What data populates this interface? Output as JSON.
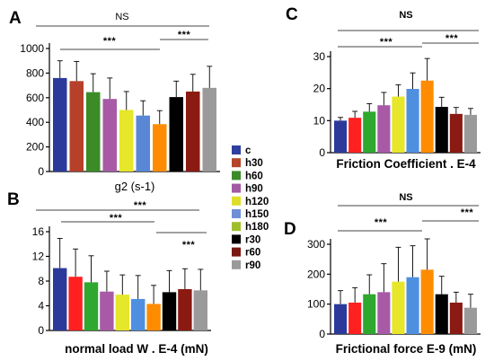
{
  "legend": [
    {
      "label": "c",
      "color": "#2e3fa0"
    },
    {
      "label": "h30",
      "color": "#b5452b"
    },
    {
      "label": "h60",
      "color": "#3a8c2a"
    },
    {
      "label": "h90",
      "color": "#a25aa4"
    },
    {
      "label": "h120",
      "color": "#dede2a"
    },
    {
      "label": "h150",
      "color": "#6f8fd6"
    },
    {
      "label": "h180",
      "color": "#9fbf2a"
    },
    {
      "label": "r30",
      "color": "#000000"
    },
    {
      "label": "r60",
      "color": "#7a1a12"
    },
    {
      "label": "r90",
      "color": "#9a9a9a"
    }
  ],
  "chart_data": [
    {
      "type": "bar",
      "panel": "A",
      "xlabel": "g2 (s-1)",
      "ylabel": "",
      "ylim": [
        0,
        1000
      ],
      "yticks": [
        0,
        200,
        400,
        600,
        800,
        1000
      ],
      "series_colors": [
        "#2b3a9a",
        "#b6402a",
        "#3b8c27",
        "#a85aa6",
        "#e6e62a",
        "#5a86d6",
        "#ff8c00",
        "#000000",
        "#8b1a12",
        "#9a9a9a"
      ],
      "values": [
        760,
        735,
        645,
        590,
        500,
        455,
        385,
        605,
        650,
        680
      ],
      "errors": [
        140,
        160,
        150,
        170,
        150,
        120,
        110,
        130,
        140,
        175
      ],
      "significance": [
        {
          "label": "NS",
          "from": 0,
          "to": 9
        },
        {
          "label": "***",
          "from": 0,
          "to": 6
        },
        {
          "label": "***",
          "from": 6,
          "to": 9
        }
      ]
    },
    {
      "type": "bar",
      "panel": "B",
      "xlabel": "normal load W . E-4 (mN)",
      "ylabel": "",
      "ylim": [
        0,
        16
      ],
      "yticks": [
        0,
        4,
        8,
        12,
        16
      ],
      "series_colors": [
        "#2b3a9a",
        "#ff2020",
        "#2ea82e",
        "#a85aa6",
        "#e6e62a",
        "#4f8fe0",
        "#ff8c00",
        "#000000",
        "#8b1a12",
        "#9a9a9a"
      ],
      "values": [
        10.1,
        8.7,
        7.8,
        6.3,
        5.8,
        5.1,
        4.3,
        6.2,
        6.7,
        6.5
      ],
      "errors": [
        4.8,
        4.5,
        4.3,
        3.3,
        3.2,
        3.8,
        3.0,
        3.5,
        3.3,
        3.4
      ],
      "significance": [
        {
          "label": "***",
          "from": 0,
          "to": 9
        },
        {
          "label": "***",
          "from": 0,
          "to": 6
        },
        {
          "label": "***",
          "from": 6,
          "to": 9
        }
      ]
    },
    {
      "type": "bar",
      "panel": "C",
      "xlabel": "Friction Coefficient . E-4",
      "ylabel": "",
      "ylim": [
        0,
        30
      ],
      "yticks": [
        0,
        10,
        20,
        30
      ],
      "series_colors": [
        "#2b3a9a",
        "#ff2020",
        "#2ea82e",
        "#a85aa6",
        "#e6e62a",
        "#4f8fe0",
        "#ff8c00",
        "#000000",
        "#8b1a12",
        "#9a9a9a"
      ],
      "values": [
        10.0,
        10.9,
        12.8,
        14.8,
        17.5,
        19.9,
        22.5,
        14.3,
        12.1,
        11.8
      ],
      "errors": [
        1.0,
        2.0,
        2.5,
        4.0,
        3.7,
        5.0,
        6.9,
        3.0,
        2.0,
        2.0
      ],
      "significance": [
        {
          "label": "NS",
          "from": 0,
          "to": 9
        },
        {
          "label": "***",
          "from": 0,
          "to": 6
        },
        {
          "label": "***",
          "from": 6,
          "to": 9
        }
      ]
    },
    {
      "type": "bar",
      "panel": "D",
      "xlabel": "Frictional force E-9 (mN)",
      "ylabel": "",
      "ylim": [
        0,
        300
      ],
      "yticks": [
        0,
        100,
        200,
        300
      ],
      "series_colors": [
        "#2b3a9a",
        "#ff2020",
        "#2ea82e",
        "#a85aa6",
        "#e6e62a",
        "#4f8fe0",
        "#ff8c00",
        "#000000",
        "#8b1a12",
        "#9a9a9a"
      ],
      "values": [
        100,
        105,
        133,
        140,
        175,
        190,
        215,
        133,
        105,
        88
      ],
      "errors": [
        45,
        50,
        65,
        95,
        115,
        105,
        115,
        60,
        35,
        45
      ],
      "significance": [
        {
          "label": "NS",
          "from": 0,
          "to": 9
        },
        {
          "label": "***",
          "from": 0,
          "to": 6
        },
        {
          "label": "***",
          "from": 6,
          "to": 9
        }
      ]
    }
  ]
}
